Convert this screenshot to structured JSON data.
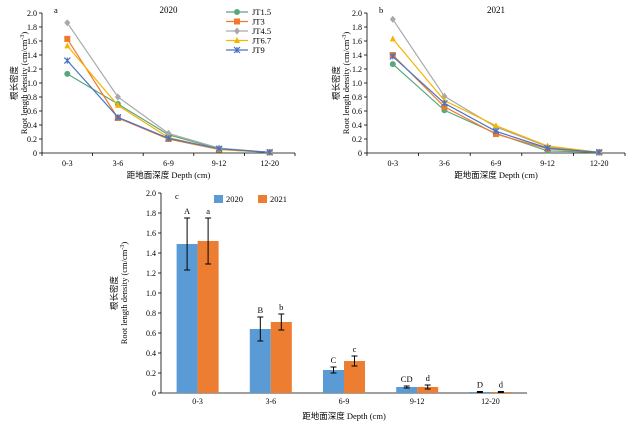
{
  "chart_data": [
    {
      "id": "a",
      "type": "line",
      "panel_label": "a",
      "title": "2020",
      "xlabel": "距地面深度 Depth (cm)",
      "ylabel_cn": "根长密度",
      "ylabel_en": "Root length density (cm/cm",
      "ylabel_sup": "-3",
      "ylabel_close": ")",
      "categories": [
        "0-3",
        "3-6",
        "6-9",
        "9-12",
        "12-20"
      ],
      "ylim": [
        0,
        2.0
      ],
      "yticks": [
        "0",
        "0.2",
        "0.4",
        "0.6",
        "0.8",
        "1.0",
        "1.2",
        "1.4",
        "1.6",
        "1.8",
        "2.0"
      ],
      "legend_position": "top-right",
      "series": [
        {
          "name": "JT1.5",
          "color": "#5aa879",
          "marker": "circle",
          "values": [
            1.13,
            0.7,
            0.26,
            0.06,
            0.01
          ]
        },
        {
          "name": "JT3",
          "color": "#f07a2a",
          "marker": "square",
          "values": [
            1.63,
            0.5,
            0.2,
            0.05,
            0.01
          ]
        },
        {
          "name": "JT4.5",
          "color": "#a9a9a9",
          "marker": "diamond",
          "values": [
            1.86,
            0.8,
            0.28,
            0.07,
            0.01
          ]
        },
        {
          "name": "JT6.7",
          "color": "#f4b400",
          "marker": "triangle",
          "values": [
            1.53,
            0.68,
            0.22,
            0.05,
            0.01
          ]
        },
        {
          "name": "JT9",
          "color": "#4a72c4",
          "marker": "x",
          "values": [
            1.32,
            0.51,
            0.21,
            0.06,
            0.01
          ]
        }
      ]
    },
    {
      "id": "b",
      "type": "line",
      "panel_label": "b",
      "title": "2021",
      "xlabel": "距地面深度 Depth (cm)",
      "ylabel_cn": "根长密度",
      "ylabel_en": "Root length density (cm/cm",
      "ylabel_sup": "-3",
      "ylabel_close": ")",
      "categories": [
        "0-3",
        "3-6",
        "6-9",
        "9-12",
        "12-20"
      ],
      "ylim": [
        0,
        2.0
      ],
      "yticks": [
        "0",
        "0.2",
        "0.4",
        "0.6",
        "0.8",
        "1.0",
        "1.2",
        "1.4",
        "1.6",
        "1.8",
        "2.0"
      ],
      "series": [
        {
          "name": "JT1.5",
          "color": "#5aa879",
          "marker": "circle",
          "values": [
            1.27,
            0.61,
            0.28,
            0.03,
            0.01
          ]
        },
        {
          "name": "JT3",
          "color": "#f07a2a",
          "marker": "square",
          "values": [
            1.4,
            0.66,
            0.27,
            0.06,
            0.01
          ]
        },
        {
          "name": "JT4.5",
          "color": "#a9a9a9",
          "marker": "diamond",
          "values": [
            1.91,
            0.81,
            0.37,
            0.09,
            0.01
          ]
        },
        {
          "name": "JT6.7",
          "color": "#f4b400",
          "marker": "triangle",
          "values": [
            1.63,
            0.75,
            0.39,
            0.1,
            0.01
          ]
        },
        {
          "name": "JT9",
          "color": "#4a72c4",
          "marker": "x",
          "values": [
            1.38,
            0.71,
            0.31,
            0.07,
            0.01
          ]
        }
      ]
    },
    {
      "id": "c",
      "type": "bar",
      "panel_label": "c",
      "xlabel": "距地面深度 Depth (cm)",
      "ylabel_cn": "根长密度",
      "ylabel_en": "Root length density (cm/cm",
      "ylabel_sup": "-3",
      "ylabel_close": ")",
      "categories": [
        "0-3",
        "3-6",
        "6-9",
        "9-12",
        "12-20"
      ],
      "ylim": [
        0,
        2.0
      ],
      "yticks": [
        "0",
        "0.2",
        "0.4",
        "0.6",
        "0.8",
        "1.0",
        "1.2",
        "1.4",
        "1.6",
        "1.8",
        "2.0"
      ],
      "legend_position": "top-center",
      "series": [
        {
          "name": "2020",
          "color": "#5b9bd5",
          "values": [
            1.49,
            0.64,
            0.23,
            0.06,
            0.01
          ],
          "errors": [
            0.26,
            0.12,
            0.03,
            0.01,
            0.005
          ],
          "letters": [
            "A",
            "B",
            "C",
            "CD",
            "D"
          ]
        },
        {
          "name": "2021",
          "color": "#ed7d31",
          "values": [
            1.52,
            0.71,
            0.32,
            0.06,
            0.01
          ],
          "errors": [
            0.23,
            0.08,
            0.05,
            0.02,
            0.005
          ],
          "letters": [
            "a",
            "b",
            "c",
            "d",
            "d"
          ]
        }
      ]
    }
  ]
}
